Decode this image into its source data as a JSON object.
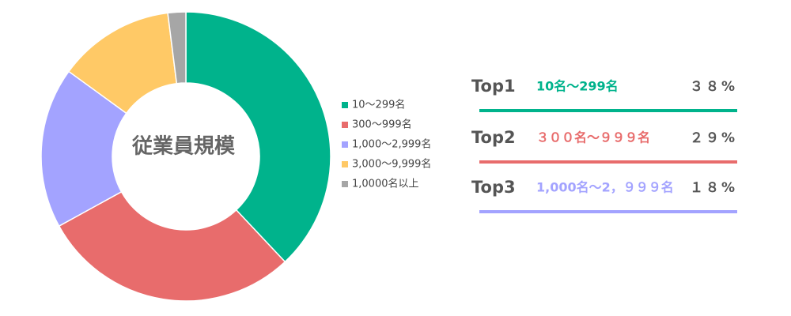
{
  "chart_data": {
    "type": "donut",
    "title": "従業員規模",
    "categories": [
      "10～299名",
      "300～999名",
      "1,000～2,999名",
      "3,000～9,999名",
      "1,0000名以上"
    ],
    "values": [
      38,
      29,
      18,
      13,
      2
    ],
    "colors": [
      "#00b38c",
      "#e86c6c",
      "#a3a3ff",
      "#ffc966",
      "#a6a6a6"
    ],
    "legend": "right"
  },
  "ranking": [
    {
      "rank": "Top1",
      "label": "10名～299名",
      "value": "３８%",
      "color": "#00b38c"
    },
    {
      "rank": "Top2",
      "label": "３００名～９９９名",
      "value": "２９%",
      "color": "#e86c6c"
    },
    {
      "rank": "Top3",
      "label": "1,000名～2，９９９名",
      "value": "１８%",
      "color": "#a3a3ff"
    }
  ]
}
